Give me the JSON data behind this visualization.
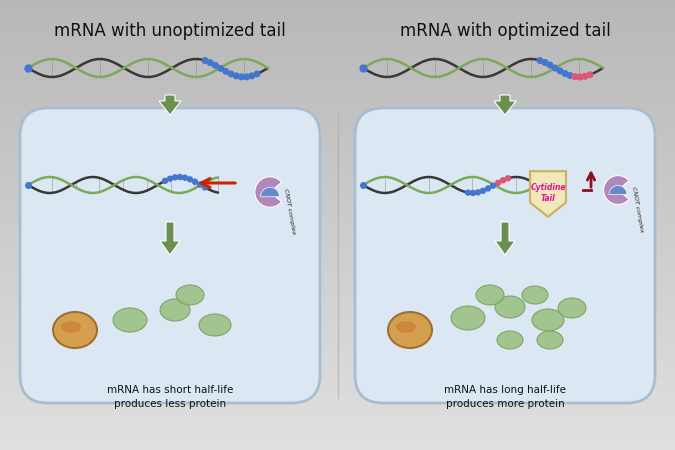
{
  "bg_top": "#c8c8c8",
  "bg_bot": "#e8e8e8",
  "cell_color": "#dbe8f4",
  "cell_edge": "#a8bdd0",
  "title_left": "mRNA with unoptimized tail",
  "title_right": "mRNA with optimized tail",
  "caption_left": "mRNA has short half-life\nproduces less protein",
  "caption_right": "mRNA has long half-life\nproduces more protein",
  "arrow_green": "#6b8f4e",
  "red_arrow": "#cc2200",
  "dna_green": "#7aaa5a",
  "dna_dark": "#383838",
  "tail_blue": "#4477cc",
  "tail_pink": "#dd5577",
  "nucleus_outer": "#d4a050",
  "nucleus_inner": "#c88030",
  "protein_color": "#9abf80",
  "protein_edge": "#7a9f60",
  "shield_face": "#f0e8b8",
  "shield_edge": "#c8b060",
  "cnot_purple": "#b088bb",
  "cnot_blue": "#6688cc",
  "cytidine_text": "#dd1199",
  "up_arrow": "#881122",
  "sep_color": "#aaaaaa"
}
